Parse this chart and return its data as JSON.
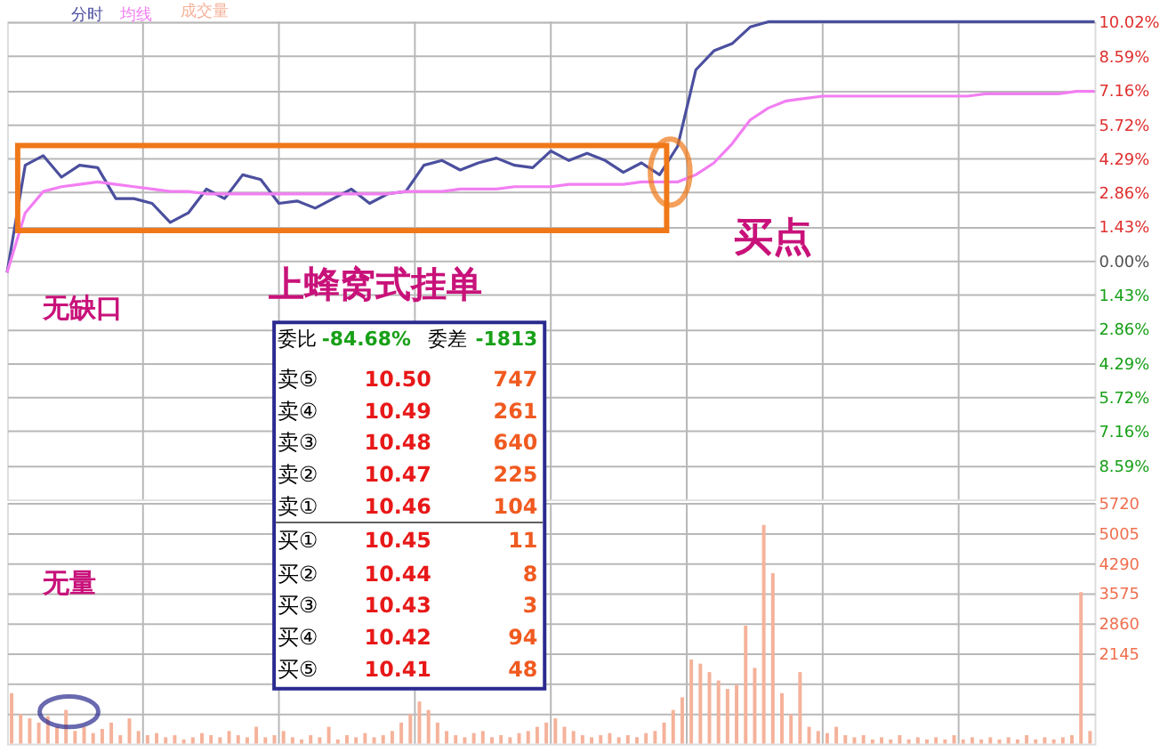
{
  "chart_data": [
    {
      "type": "line",
      "annotations": [
        "买点",
        "上蜂窝式挂单",
        "无缺口"
      ],
      "categories": [
        null,
        null,
        null,
        null,
        null,
        null,
        null,
        null,
        null,
        null,
        null,
        null,
        null,
        null,
        null,
        null,
        null,
        null,
        null,
        null,
        null,
        null,
        null,
        null,
        null,
        null,
        null,
        null,
        null,
        null,
        null,
        null,
        null,
        null,
        null,
        null,
        null,
        null,
        null,
        null,
        null,
        null,
        null,
        null,
        null,
        null,
        null,
        null,
        null,
        null,
        null,
        null,
        null,
        null,
        null,
        null,
        null,
        null,
        null,
        null,
        null
      ],
      "series": [
        {
          "name": "分时",
          "color": "#4b4f9e",
          "values": [
            -0.5,
            4.0,
            4.4,
            3.5,
            4.0,
            3.9,
            2.6,
            2.6,
            2.4,
            1.6,
            2.0,
            3.0,
            2.6,
            3.6,
            3.4,
            2.4,
            2.5,
            2.2,
            2.6,
            3.0,
            2.4,
            2.8,
            2.9,
            4.0,
            4.2,
            3.8,
            4.1,
            4.3,
            4.0,
            3.9,
            4.6,
            4.2,
            4.5,
            4.2,
            3.7,
            4.1,
            3.6,
            4.8,
            8.0,
            8.8,
            9.1,
            9.8,
            10.02,
            10.02,
            10.02,
            10.02,
            10.02,
            10.02,
            10.02,
            10.02,
            10.02,
            10.02,
            10.02,
            10.02,
            10.02,
            10.02,
            10.02,
            10.02,
            10.02,
            10.02,
            10.02
          ]
        },
        {
          "name": "均线",
          "color": "#f27ef2",
          "values": [
            -0.5,
            2.0,
            2.9,
            3.1,
            3.2,
            3.3,
            3.2,
            3.1,
            3.0,
            2.9,
            2.9,
            2.8,
            2.8,
            2.8,
            2.8,
            2.8,
            2.8,
            2.8,
            2.8,
            2.8,
            2.8,
            2.8,
            2.9,
            2.9,
            2.9,
            3.0,
            3.0,
            3.0,
            3.1,
            3.1,
            3.1,
            3.2,
            3.2,
            3.2,
            3.2,
            3.3,
            3.3,
            3.3,
            3.6,
            4.1,
            4.9,
            5.9,
            6.4,
            6.7,
            6.8,
            6.9,
            6.9,
            6.9,
            6.9,
            6.9,
            6.9,
            6.9,
            6.9,
            6.9,
            7.0,
            7.0,
            7.0,
            7.0,
            7.0,
            7.1,
            7.1
          ]
        }
      ],
      "ylim": [
        -10.02,
        10.02
      ],
      "yticks": [
        {
          "value": 10.02,
          "label": "10.02%"
        },
        {
          "value": 8.59,
          "label": "8.59%"
        },
        {
          "value": 7.16,
          "label": "7.16%"
        },
        {
          "value": 5.72,
          "label": "5.72%"
        },
        {
          "value": 4.29,
          "label": "4.29%"
        },
        {
          "value": 2.86,
          "label": "2.86%"
        },
        {
          "value": 1.43,
          "label": "1.43%"
        },
        {
          "value": 0,
          "label": "0.00%"
        },
        {
          "value": -1.43,
          "label": "1.43%"
        },
        {
          "value": -2.86,
          "label": "2.86%"
        },
        {
          "value": -4.29,
          "label": "4.29%"
        },
        {
          "value": -5.72,
          "label": "5.72%"
        },
        {
          "value": -7.16,
          "label": "7.16%"
        },
        {
          "value": -8.59,
          "label": "8.59%"
        }
      ],
      "grid": true,
      "tick_labels": "y"
    },
    {
      "type": "bar",
      "annotations": [
        "无量",
        "委比",
        "-84.68%",
        "委差",
        "-1813",
        "卖⑤",
        "10.50",
        "747",
        "卖④",
        "10.49",
        "261",
        "卖③",
        "10.48",
        "640",
        "卖②",
        "10.47",
        "225",
        "卖①",
        "10.46",
        "104",
        "买①",
        "10.45",
        "11",
        "买②",
        "10.44",
        "8",
        "买③",
        "10.43",
        "3",
        "买④",
        "10.42",
        "94",
        "买⑤",
        "10.41",
        "48"
      ],
      "categories": [
        null,
        null,
        null,
        null,
        null,
        null,
        null,
        null,
        null,
        null,
        null,
        null,
        null,
        null,
        null,
        null,
        null,
        null,
        null,
        null,
        null,
        null,
        null,
        null,
        null,
        null,
        null,
        null,
        null,
        null,
        null,
        null,
        null,
        null,
        null,
        null,
        null,
        null,
        null,
        null,
        null,
        null,
        null,
        null,
        null,
        null,
        null,
        null,
        null,
        null,
        null,
        null,
        null,
        null,
        null,
        null,
        null,
        null,
        null,
        null,
        null,
        null,
        null,
        null,
        null,
        null,
        null,
        null,
        null,
        null,
        null,
        null,
        null,
        null,
        null,
        null,
        null,
        null,
        null,
        null,
        null,
        null,
        null,
        null,
        null,
        null,
        null,
        null,
        null,
        null,
        null,
        null,
        null,
        null,
        null,
        null,
        null,
        null,
        null,
        null,
        null,
        null,
        null,
        null,
        null,
        null,
        null,
        null,
        null,
        null,
        null,
        null,
        null,
        null,
        null,
        null,
        null,
        null,
        null,
        null
      ],
      "series": [
        {
          "name": "成交量",
          "color": "#f5b29a",
          "values": [
            1200,
            700,
            600,
            500,
            650,
            400,
            800,
            300,
            400,
            250,
            350,
            500,
            200,
            600,
            300,
            200,
            250,
            150,
            200,
            100,
            150,
            250,
            200,
            150,
            300,
            200,
            150,
            400,
            150,
            200,
            300,
            150,
            100,
            200,
            150,
            400,
            100,
            200,
            150,
            250,
            150,
            200,
            300,
            500,
            700,
            1000,
            800,
            500,
            300,
            200,
            150,
            250,
            300,
            150,
            200,
            150,
            250,
            300,
            400,
            500,
            600,
            400,
            300,
            200,
            150,
            200,
            250,
            150,
            200,
            150,
            250,
            300,
            500,
            800,
            1100,
            2000,
            1900,
            1700,
            1500,
            1300,
            1400,
            2800,
            1800,
            5200,
            4050,
            1200,
            700,
            1700,
            400,
            300,
            250,
            400,
            200,
            150,
            200,
            100,
            150,
            100,
            200,
            100,
            150,
            100,
            150,
            100,
            200,
            100,
            150,
            100,
            150,
            100,
            150,
            100,
            200,
            100,
            150,
            100,
            150,
            200,
            3600,
            300
          ]
        }
      ],
      "ylim": [
        0,
        5720
      ],
      "yticks": [
        {
          "value": 715,
          "label": null
        },
        {
          "value": 1430,
          "label": null
        },
        2145,
        2860,
        3575,
        4290,
        5005,
        5720
      ],
      "grid": true,
      "tick_labels": "y"
    }
  ]
}
